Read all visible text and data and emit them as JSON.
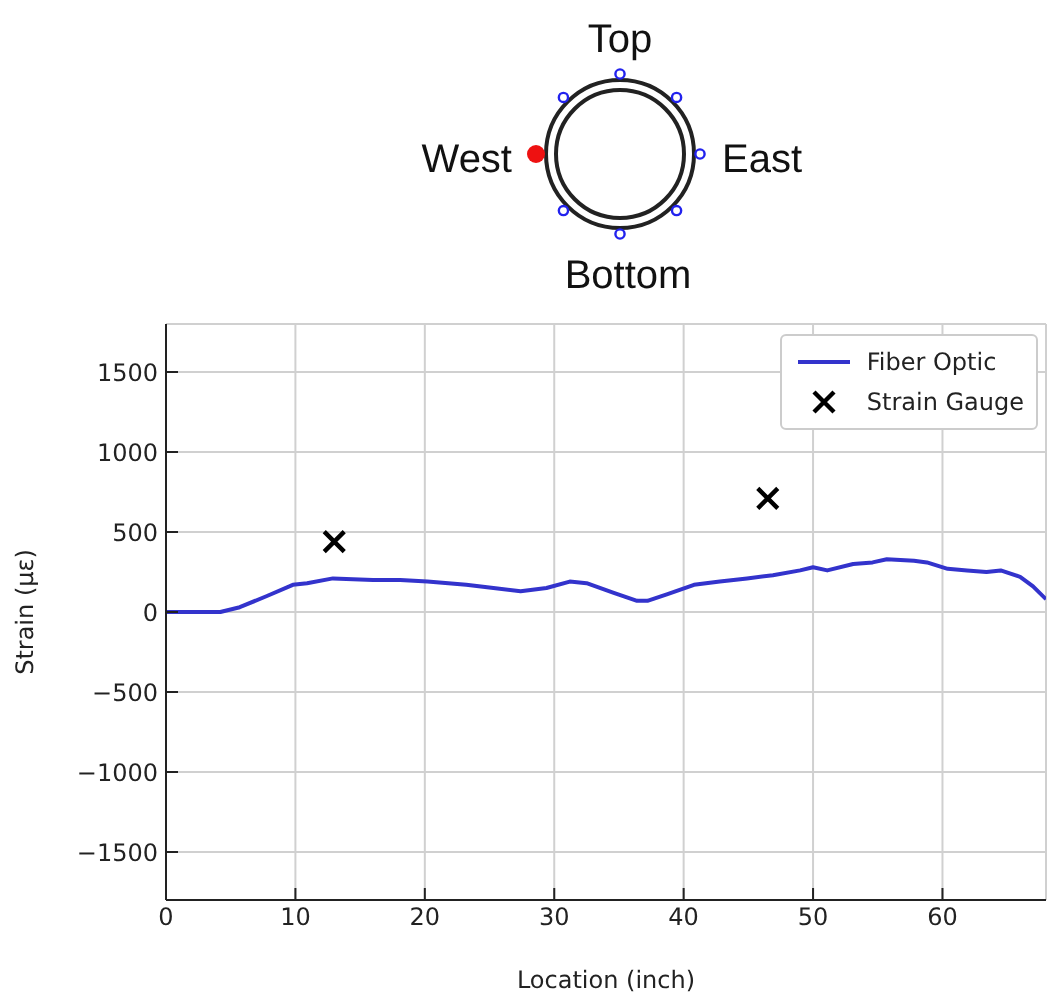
{
  "chart_data": {
    "type": "line",
    "xlabel": "Location (inch)",
    "ylabel": "Strain (με)",
    "xlim": [
      0,
      68
    ],
    "xticks": [
      0,
      10,
      20,
      30,
      40,
      50,
      60
    ],
    "ylim": [
      -1800,
      1800
    ],
    "yticks": [
      -1500,
      -1000,
      -500,
      0,
      500,
      1000,
      1500
    ],
    "grid": true,
    "legend": "top right",
    "annotations": [
      "Top",
      "West",
      "East",
      "Bottom"
    ],
    "series": [
      {
        "name": "Fiber Optic",
        "type": "line",
        "color": "#3333cc",
        "marker": "none",
        "x": [
          0,
          4.2,
          5.7,
          7.8,
          9.8,
          10.9,
          12.9,
          16,
          18.1,
          20.2,
          23.2,
          25.3,
          27.4,
          29.4,
          31.2,
          32.5,
          34.6,
          36.4,
          37.2,
          38.7,
          40.8,
          42.8,
          44.9,
          46.9,
          49,
          50,
          51.1,
          53.1,
          54.6,
          55.7,
          57.8,
          58.8,
          60.4,
          61.9,
          63.4,
          64.5,
          66,
          67,
          68
        ],
        "values": [
          0,
          0,
          30,
          100,
          170,
          180,
          210,
          200,
          200,
          190,
          170,
          150,
          130,
          150,
          190,
          180,
          120,
          70,
          70,
          110,
          170,
          190,
          210,
          230,
          260,
          280,
          260,
          300,
          310,
          330,
          320,
          310,
          270,
          260,
          250,
          260,
          220,
          160,
          80
        ]
      },
      {
        "name": "Strain Gauge",
        "type": "scatter",
        "color": "#000000",
        "marker": "cross",
        "x": [
          13,
          46.5
        ],
        "values": [
          440,
          710
        ]
      }
    ]
  }
}
